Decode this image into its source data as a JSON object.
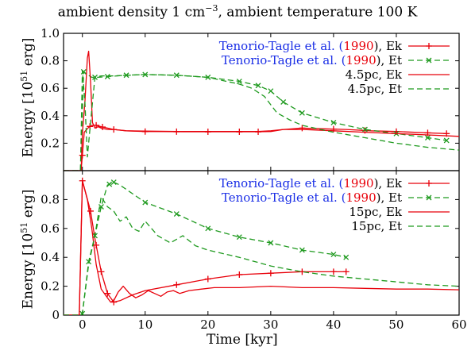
{
  "figure": {
    "title_prefix": "ambient density 1 cm",
    "title_sup": "−3",
    "title_suffix": ", ambient temperature 100 K",
    "xlabel": "Time [kyr]",
    "ylabel_prefix": "Energy [10",
    "ylabel_sup": "51",
    "ylabel_suffix": " erg]"
  },
  "colors": {
    "red": "#e8000a",
    "green": "#1f9a1f",
    "blue": "#1a2ee6",
    "axis": "#000000"
  },
  "chart_data": [
    {
      "type": "line",
      "panel": "top",
      "xlim": [
        -3,
        60
      ],
      "ylim": [
        0,
        1.0
      ],
      "xticks": [
        0,
        10,
        20,
        30,
        40,
        50,
        60
      ],
      "yticks": [
        0.2,
        0.4,
        0.6,
        0.8,
        1.0
      ],
      "ytick_labels": [
        "0.2",
        "0.4",
        "0.6",
        "0.8",
        "1.0"
      ],
      "legend_position": "top-right",
      "series": [
        {
          "name_main": "Tenorio-Tagle et al. (",
          "name_year": "1990",
          "name_tail": "), Ek",
          "color": "red",
          "dash": "solid",
          "marker": "plus",
          "x": [
            -3,
            -0.2,
            0.3,
            0.7,
            1.1,
            1.6,
            2.2,
            3,
            4,
            5,
            7,
            10,
            13,
            16,
            20,
            24,
            28,
            30,
            32,
            35,
            38,
            42,
            46,
            50,
            55,
            58
          ],
          "y": [
            0.0,
            0.0,
            0.28,
            0.3,
            0.32,
            0.33,
            0.33,
            0.32,
            0.31,
            0.3,
            0.29,
            0.285,
            0.285,
            0.283,
            0.283,
            0.283,
            0.283,
            0.285,
            0.3,
            0.31,
            0.305,
            0.3,
            0.29,
            0.285,
            0.275,
            0.27
          ],
          "marker_x": [
            0,
            1.2,
            2.2,
            3.2,
            5,
            10,
            15,
            20,
            25,
            28,
            35,
            40,
            45,
            50,
            55,
            58
          ]
        },
        {
          "name_main": "Tenorio-Tagle et al. (",
          "name_year": "1990",
          "name_tail": "), Et",
          "color": "green",
          "dash": "dashed",
          "marker": "cross",
          "x": [
            -3,
            -0.3,
            0.2,
            0.8,
            1.5,
            2.5,
            4,
            7,
            10,
            15,
            20,
            25,
            28,
            30,
            32,
            35,
            40,
            45,
            50,
            55,
            58
          ],
          "y": [
            0.0,
            0.0,
            0.72,
            0.7,
            0.68,
            0.68,
            0.685,
            0.695,
            0.7,
            0.695,
            0.68,
            0.65,
            0.62,
            0.58,
            0.5,
            0.42,
            0.35,
            0.3,
            0.27,
            0.24,
            0.22
          ],
          "marker_x": [
            0.2,
            2,
            4,
            7,
            10,
            15,
            20,
            25,
            28,
            30,
            32,
            35,
            40,
            45,
            50,
            55,
            58
          ]
        },
        {
          "name_main": "4.5pc, Ek",
          "color": "red",
          "dash": "solid",
          "marker": "none",
          "x": [
            -3,
            -0.2,
            0.0,
            0.4,
            0.8,
            1.0,
            1.3,
            1.6,
            2.0,
            2.5,
            3,
            4,
            5,
            7,
            10,
            15,
            20,
            25,
            28,
            30,
            32,
            35,
            40,
            45,
            50,
            55,
            60
          ],
          "y": [
            0.0,
            0.0,
            0.27,
            0.5,
            0.82,
            0.87,
            0.65,
            0.35,
            0.31,
            0.32,
            0.31,
            0.3,
            0.3,
            0.29,
            0.288,
            0.285,
            0.285,
            0.285,
            0.285,
            0.29,
            0.3,
            0.3,
            0.29,
            0.28,
            0.27,
            0.26,
            0.25
          ]
        },
        {
          "name_main": "4.5pc, Et",
          "color": "green",
          "dash": "dashed",
          "marker": "none",
          "x": [
            -3,
            -0.3,
            0.0,
            0.4,
            0.8,
            1.3,
            2.0,
            3,
            5,
            10,
            15,
            20,
            25,
            27,
            29,
            30,
            31,
            33,
            35,
            40,
            45,
            50,
            55,
            60
          ],
          "y": [
            0.0,
            0.0,
            0.73,
            0.5,
            0.1,
            0.35,
            0.68,
            0.69,
            0.69,
            0.7,
            0.695,
            0.68,
            0.63,
            0.6,
            0.54,
            0.48,
            0.42,
            0.37,
            0.33,
            0.28,
            0.24,
            0.2,
            0.17,
            0.15
          ]
        }
      ]
    },
    {
      "type": "line",
      "panel": "bottom",
      "xlim": [
        -3,
        60
      ],
      "ylim": [
        0,
        1.0
      ],
      "xticks": [
        0,
        10,
        20,
        30,
        40,
        50,
        60
      ],
      "xtick_labels": [
        "0",
        "10",
        "20",
        "30",
        "40",
        "50",
        "60"
      ],
      "yticks": [
        0,
        0.2,
        0.4,
        0.6,
        0.8
      ],
      "ytick_labels": [
        "0",
        "0.2",
        "0.4",
        "0.6",
        "0.8"
      ],
      "legend_position": "top-right",
      "series": [
        {
          "name_main": "Tenorio-Tagle et al. (",
          "name_year": "1990",
          "name_tail": "), Ek",
          "color": "red",
          "dash": "solid",
          "marker": "plus",
          "x": [
            -3,
            -0.5,
            0.0,
            0.5,
            1.3,
            2.0,
            3,
            4,
            5,
            6,
            8,
            10,
            15,
            20,
            25,
            30,
            35,
            40,
            42
          ],
          "y": [
            0.0,
            0.0,
            0.93,
            0.85,
            0.72,
            0.53,
            0.3,
            0.15,
            0.09,
            0.1,
            0.14,
            0.17,
            0.21,
            0.25,
            0.28,
            0.29,
            0.3,
            0.3,
            0.3
          ],
          "marker_x": [
            0,
            1.3,
            2.2,
            3,
            4,
            5,
            15,
            20,
            25,
            30,
            35,
            40,
            42
          ]
        },
        {
          "name_main": "Tenorio-Tagle et al. (",
          "name_year": "1990",
          "name_tail": "), Et",
          "color": "green",
          "dash": "dashed",
          "marker": "cross",
          "x": [
            -3,
            -0.5,
            0.0,
            1.0,
            2.0,
            3,
            4,
            4.5,
            5,
            6,
            10,
            15,
            20,
            25,
            30,
            35,
            40,
            42
          ],
          "y": [
            0.0,
            0.0,
            0.01,
            0.37,
            0.55,
            0.75,
            0.9,
            0.91,
            0.92,
            0.9,
            0.78,
            0.7,
            0.6,
            0.54,
            0.5,
            0.45,
            0.42,
            0.4
          ],
          "marker_x": [
            0,
            1,
            2,
            3,
            4.3,
            5,
            10,
            15,
            20,
            25,
            30,
            35,
            40,
            42
          ]
        },
        {
          "name_main": "15pc, Ek",
          "color": "red",
          "dash": "solid",
          "marker": "none",
          "x": [
            -3,
            -0.5,
            0.0,
            0.8,
            1.5,
            2.2,
            3,
            4,
            4.5,
            5,
            5.7,
            6.5,
            7.5,
            8.5,
            9.5,
            10.5,
            11.5,
            12.5,
            13.5,
            14.5,
            15.5,
            17,
            19,
            21,
            25,
            30,
            35,
            40,
            45,
            50,
            55,
            60
          ],
          "y": [
            0.0,
            0.0,
            0.93,
            0.8,
            0.6,
            0.35,
            0.18,
            0.12,
            0.09,
            0.1,
            0.16,
            0.2,
            0.15,
            0.12,
            0.14,
            0.17,
            0.15,
            0.13,
            0.16,
            0.17,
            0.15,
            0.17,
            0.18,
            0.19,
            0.19,
            0.2,
            0.19,
            0.19,
            0.185,
            0.18,
            0.18,
            0.175
          ]
        },
        {
          "name_main": "15pc, Et",
          "color": "green",
          "dash": "dashed",
          "marker": "none",
          "x": [
            -3,
            -0.5,
            0.0,
            1.0,
            2.0,
            3,
            4,
            5,
            6,
            7,
            8,
            9,
            10,
            12,
            14,
            16,
            18,
            20,
            25,
            30,
            35,
            40,
            45,
            50,
            55,
            60
          ],
          "y": [
            0.0,
            0.0,
            0.01,
            0.35,
            0.55,
            0.82,
            0.75,
            0.72,
            0.65,
            0.68,
            0.6,
            0.58,
            0.65,
            0.55,
            0.5,
            0.55,
            0.48,
            0.45,
            0.4,
            0.34,
            0.3,
            0.27,
            0.25,
            0.23,
            0.21,
            0.2
          ]
        }
      ]
    }
  ]
}
